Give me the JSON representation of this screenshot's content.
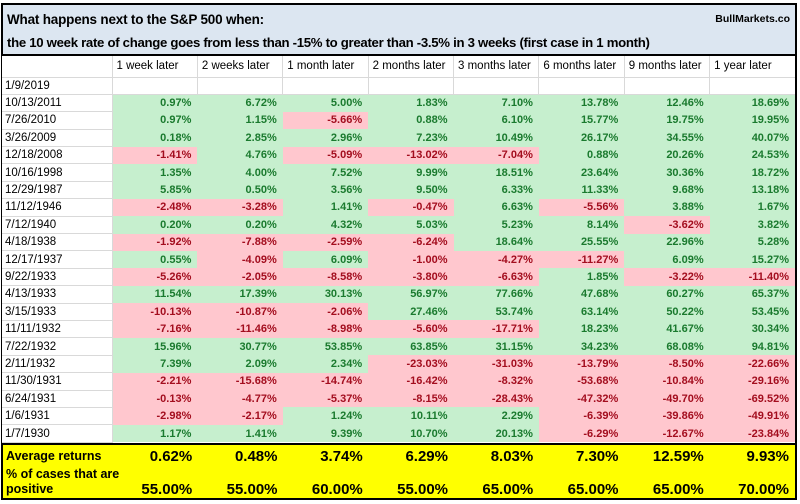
{
  "title": {
    "line1": "What happens next to the S&P 500 when:",
    "line2": "the 10 week rate of change goes from less than -15% to greater than -3.5% in 3 weeks (first case in 1 month)",
    "brand": "BullMarkets.co"
  },
  "colors": {
    "title_fill": "#dce6f1",
    "positive_fill": "#c6efce",
    "positive_text": "#1a7a2e",
    "negative_fill": "#ffc7ce",
    "negative_text": "#a30d1e",
    "summary_fill": "#ffff00",
    "gridline": "#d9d9d9"
  },
  "table": {
    "columns": [
      "1 week later",
      "2 weeks later",
      "1 month later",
      "2 months later",
      "3 months later",
      "6 months later",
      "9 months later",
      "1 year later"
    ],
    "rows": [
      {
        "date": "1/9/2019",
        "values": [
          "",
          "",
          "",
          "",
          "",
          "",
          "",
          ""
        ]
      },
      {
        "date": "10/13/2011",
        "values": [
          "0.97%",
          "6.72%",
          "5.00%",
          "1.83%",
          "7.10%",
          "13.78%",
          "12.46%",
          "18.69%"
        ]
      },
      {
        "date": "7/26/2010",
        "values": [
          "0.97%",
          "1.15%",
          "-5.66%",
          "0.88%",
          "6.10%",
          "15.77%",
          "19.75%",
          "19.95%"
        ]
      },
      {
        "date": "3/26/2009",
        "values": [
          "0.18%",
          "2.85%",
          "2.96%",
          "7.23%",
          "10.49%",
          "26.17%",
          "34.55%",
          "40.07%"
        ]
      },
      {
        "date": "12/18/2008",
        "values": [
          "-1.41%",
          "4.76%",
          "-5.09%",
          "-13.02%",
          "-7.04%",
          "0.88%",
          "20.26%",
          "24.53%"
        ]
      },
      {
        "date": "10/16/1998",
        "values": [
          "1.35%",
          "4.00%",
          "7.52%",
          "9.99%",
          "18.51%",
          "23.64%",
          "30.36%",
          "18.72%"
        ]
      },
      {
        "date": "12/29/1987",
        "values": [
          "5.85%",
          "0.50%",
          "3.56%",
          "9.50%",
          "6.33%",
          "11.33%",
          "9.68%",
          "13.18%"
        ]
      },
      {
        "date": "11/12/1946",
        "values": [
          "-2.48%",
          "-3.28%",
          "1.41%",
          "-0.47%",
          "6.63%",
          "-5.56%",
          "3.88%",
          "1.67%"
        ]
      },
      {
        "date": "7/12/1940",
        "values": [
          "0.20%",
          "0.20%",
          "4.32%",
          "5.03%",
          "5.23%",
          "8.14%",
          "-3.62%",
          "3.82%"
        ]
      },
      {
        "date": "4/18/1938",
        "values": [
          "-1.92%",
          "-7.88%",
          "-2.59%",
          "-6.24%",
          "18.64%",
          "25.55%",
          "22.96%",
          "5.28%"
        ]
      },
      {
        "date": "12/17/1937",
        "values": [
          "0.55%",
          "-4.09%",
          "6.09%",
          "-1.00%",
          "-4.27%",
          "-11.27%",
          "6.09%",
          "15.27%"
        ]
      },
      {
        "date": "9/22/1933",
        "values": [
          "-5.26%",
          "-2.05%",
          "-8.58%",
          "-3.80%",
          "-6.63%",
          "1.85%",
          "-3.22%",
          "-11.40%"
        ]
      },
      {
        "date": "4/13/1933",
        "values": [
          "11.54%",
          "17.39%",
          "30.13%",
          "56.97%",
          "77.66%",
          "47.68%",
          "60.27%",
          "65.37%"
        ]
      },
      {
        "date": "3/15/1933",
        "values": [
          "-10.13%",
          "-10.87%",
          "-2.06%",
          "27.46%",
          "53.74%",
          "63.14%",
          "50.22%",
          "53.45%"
        ]
      },
      {
        "date": "11/11/1932",
        "values": [
          "-7.16%",
          "-11.46%",
          "-8.98%",
          "-5.60%",
          "-17.71%",
          "18.23%",
          "41.67%",
          "30.34%"
        ]
      },
      {
        "date": "7/22/1932",
        "values": [
          "15.96%",
          "30.77%",
          "53.85%",
          "63.85%",
          "31.15%",
          "34.23%",
          "68.08%",
          "94.81%"
        ]
      },
      {
        "date": "2/11/1932",
        "values": [
          "7.39%",
          "2.09%",
          "2.34%",
          "-23.03%",
          "-31.03%",
          "-13.79%",
          "-8.50%",
          "-22.66%"
        ]
      },
      {
        "date": "11/30/1931",
        "values": [
          "-2.21%",
          "-15.68%",
          "-14.74%",
          "-16.42%",
          "-8.32%",
          "-53.68%",
          "-10.84%",
          "-29.16%"
        ]
      },
      {
        "date": "6/24/1931",
        "values": [
          "-0.13%",
          "-4.77%",
          "-5.37%",
          "-8.15%",
          "-28.43%",
          "-47.32%",
          "-49.70%",
          "-69.52%"
        ]
      },
      {
        "date": "1/6/1931",
        "values": [
          "-2.98%",
          "-2.17%",
          "1.24%",
          "10.11%",
          "2.29%",
          "-6.39%",
          "-39.86%",
          "-49.91%"
        ]
      },
      {
        "date": "1/7/1930",
        "values": [
          "1.17%",
          "1.41%",
          "9.39%",
          "10.70%",
          "20.13%",
          "-6.29%",
          "-12.67%",
          "-23.84%"
        ]
      }
    ]
  },
  "summary": {
    "average_label": "Average returns",
    "average_values": [
      "0.62%",
      "0.48%",
      "3.74%",
      "6.29%",
      "8.03%",
      "7.30%",
      "12.59%",
      "9.93%"
    ],
    "positive_label_line1": "% of cases that are",
    "positive_label_line2": "positive",
    "positive_values": [
      "55.00%",
      "55.00%",
      "60.00%",
      "55.00%",
      "65.00%",
      "65.00%",
      "65.00%",
      "70.00%"
    ]
  }
}
